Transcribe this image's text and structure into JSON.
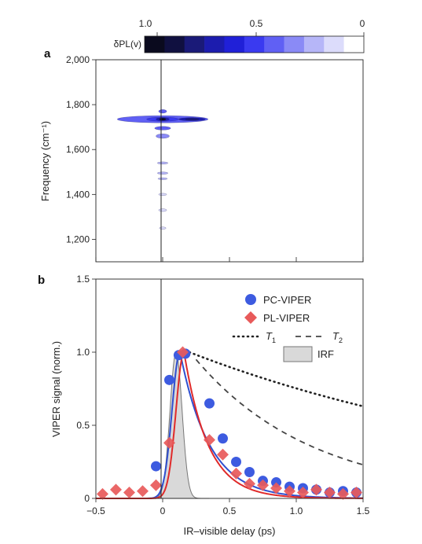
{
  "chart_data": [
    {
      "panel": "a",
      "type": "heatmap",
      "colorbar": {
        "label": "δPL(v)",
        "ticks": [
          "1.0",
          "0.5",
          "0"
        ],
        "range": [
          1.0,
          0.0
        ],
        "levels": 10,
        "colors": [
          "#0a0a1e",
          "#101040",
          "#1a1a78",
          "#1c1cae",
          "#2020d8",
          "#3a3af0",
          "#6060f4",
          "#8a8af6",
          "#b6b6f8",
          "#dcdcfb",
          "#ffffff"
        ]
      },
      "ylabel": "Frequency (cm⁻¹)",
      "yticks": [
        {
          "value": 1200,
          "label": "1,200"
        },
        {
          "value": 1400,
          "label": "1,400"
        },
        {
          "value": 1600,
          "label": "1,600"
        },
        {
          "value": 1800,
          "label": "1,800"
        },
        {
          "value": 2000,
          "label": "2,000"
        }
      ],
      "ylim": [
        1100,
        2000
      ],
      "xlim": [
        -0.5,
        1.5
      ],
      "vertical_line_x": 0,
      "features": [
        {
          "x": 0.0,
          "y": 1735,
          "sx": 0.34,
          "sy": 16,
          "level": 0.6
        },
        {
          "x": 0.0,
          "y": 1735,
          "sx": 0.12,
          "sy": 9,
          "level": 0.45
        },
        {
          "x": 0.0,
          "y": 1735,
          "sx": 0.05,
          "sy": 7,
          "level": 0.3
        },
        {
          "x": 0.0,
          "y": 1735,
          "sx": 0.025,
          "sy": 5,
          "level": 0.0
        },
        {
          "x": 0.22,
          "y": 1735,
          "sx": 0.1,
          "sy": 7,
          "level": 0.3
        },
        {
          "x": 0.22,
          "y": 1735,
          "sx": 0.05,
          "sy": 4,
          "level": 0.15
        },
        {
          "x": 0.0,
          "y": 1770,
          "sx": 0.03,
          "sy": 8,
          "level": 0.6
        },
        {
          "x": 0.0,
          "y": 1695,
          "sx": 0.06,
          "sy": 8,
          "level": 0.6
        },
        {
          "x": 0.0,
          "y": 1660,
          "sx": 0.05,
          "sy": 10,
          "level": 0.65
        },
        {
          "x": 0.0,
          "y": 1540,
          "sx": 0.04,
          "sy": 5,
          "level": 0.8
        },
        {
          "x": 0.0,
          "y": 1495,
          "sx": 0.04,
          "sy": 5,
          "level": 0.8
        },
        {
          "x": 0.0,
          "y": 1470,
          "sx": 0.035,
          "sy": 4,
          "level": 0.8
        },
        {
          "x": 0.0,
          "y": 1400,
          "sx": 0.03,
          "sy": 5,
          "level": 0.85
        },
        {
          "x": 0.0,
          "y": 1330,
          "sx": 0.03,
          "sy": 6,
          "level": 0.85
        },
        {
          "x": 0.0,
          "y": 1250,
          "sx": 0.025,
          "sy": 5,
          "level": 0.85
        }
      ]
    },
    {
      "panel": "b",
      "type": "scatter",
      "xlabel": "IR–visible delay (ps)",
      "ylabel": "VIPER signal (norm.)",
      "xlim": [
        -0.5,
        1.5
      ],
      "ylim": [
        0,
        1.5
      ],
      "xticks": [
        {
          "value": -0.5,
          "label": "−0.5"
        },
        {
          "value": 0,
          "label": "0"
        },
        {
          "value": 0.5,
          "label": "0.5"
        },
        {
          "value": 1.0,
          "label": "1.0"
        },
        {
          "value": 1.5,
          "label": "1.5"
        }
      ],
      "yticks": [
        {
          "value": 0,
          "label": "0"
        },
        {
          "value": 0.5,
          "label": "0.5"
        },
        {
          "value": 1.0,
          "label": "1.0"
        },
        {
          "value": 1.5,
          "label": "1.5"
        }
      ],
      "vertical_line_x": 0,
      "legend": {
        "position": "top-right",
        "entries": [
          {
            "label": "PC-VIPER",
            "marker": "circle",
            "color": "#3d5be0"
          },
          {
            "label": "PL-VIPER",
            "marker": "diamond",
            "color": "#e85a5a"
          },
          {
            "label": "T",
            "sub": "1",
            "style": "dotted",
            "color": "#222222"
          },
          {
            "label": "T",
            "sub": "2",
            "style": "dashed",
            "color": "#444444"
          },
          {
            "label": "IRF",
            "style": "filled",
            "color": "#d9d9d9"
          }
        ]
      },
      "series": [
        {
          "name": "PC-VIPER",
          "marker": "circle",
          "color": "#3d5be0",
          "x": [
            -0.05,
            0.05,
            0.12,
            0.17,
            0.35,
            0.45,
            0.55,
            0.65,
            0.75,
            0.85,
            0.95,
            1.05,
            1.15,
            1.25,
            1.35,
            1.45
          ],
          "y": [
            0.22,
            0.81,
            0.98,
            0.99,
            0.65,
            0.41,
            0.25,
            0.18,
            0.12,
            0.11,
            0.08,
            0.07,
            0.06,
            0.04,
            0.05,
            0.04
          ]
        },
        {
          "name": "PL-VIPER",
          "marker": "diamond",
          "color": "#e85a5a",
          "x": [
            -0.45,
            -0.35,
            -0.25,
            -0.15,
            -0.05,
            0.05,
            0.15,
            0.35,
            0.45,
            0.55,
            0.65,
            0.75,
            0.85,
            0.95,
            1.05,
            1.15,
            1.25,
            1.35,
            1.45
          ],
          "y": [
            0.03,
            0.06,
            0.04,
            0.05,
            0.09,
            0.38,
            1.0,
            0.4,
            0.3,
            0.17,
            0.1,
            0.09,
            0.07,
            0.05,
            0.04,
            0.06,
            0.04,
            0.03,
            0.04
          ]
        }
      ],
      "fits": [
        {
          "for": "PC-VIPER",
          "color": "#2f4fd0",
          "t0": 0.13,
          "rise": 0.06,
          "tau": 0.22
        },
        {
          "for": "PL-VIPER",
          "color": "#e02a2a",
          "t0": 0.16,
          "rise": 0.06,
          "tau": 0.18
        }
      ],
      "T1": {
        "start": 0.2,
        "start_value": 1.0,
        "end": 1.5,
        "end_value": 0.63
      },
      "T2": {
        "start": 0.25,
        "start_value": 0.95,
        "end": 1.5,
        "end_value": 0.23
      },
      "IRF": {
        "center": 0.1,
        "sigma": 0.045,
        "peak": 1.0
      }
    }
  ]
}
